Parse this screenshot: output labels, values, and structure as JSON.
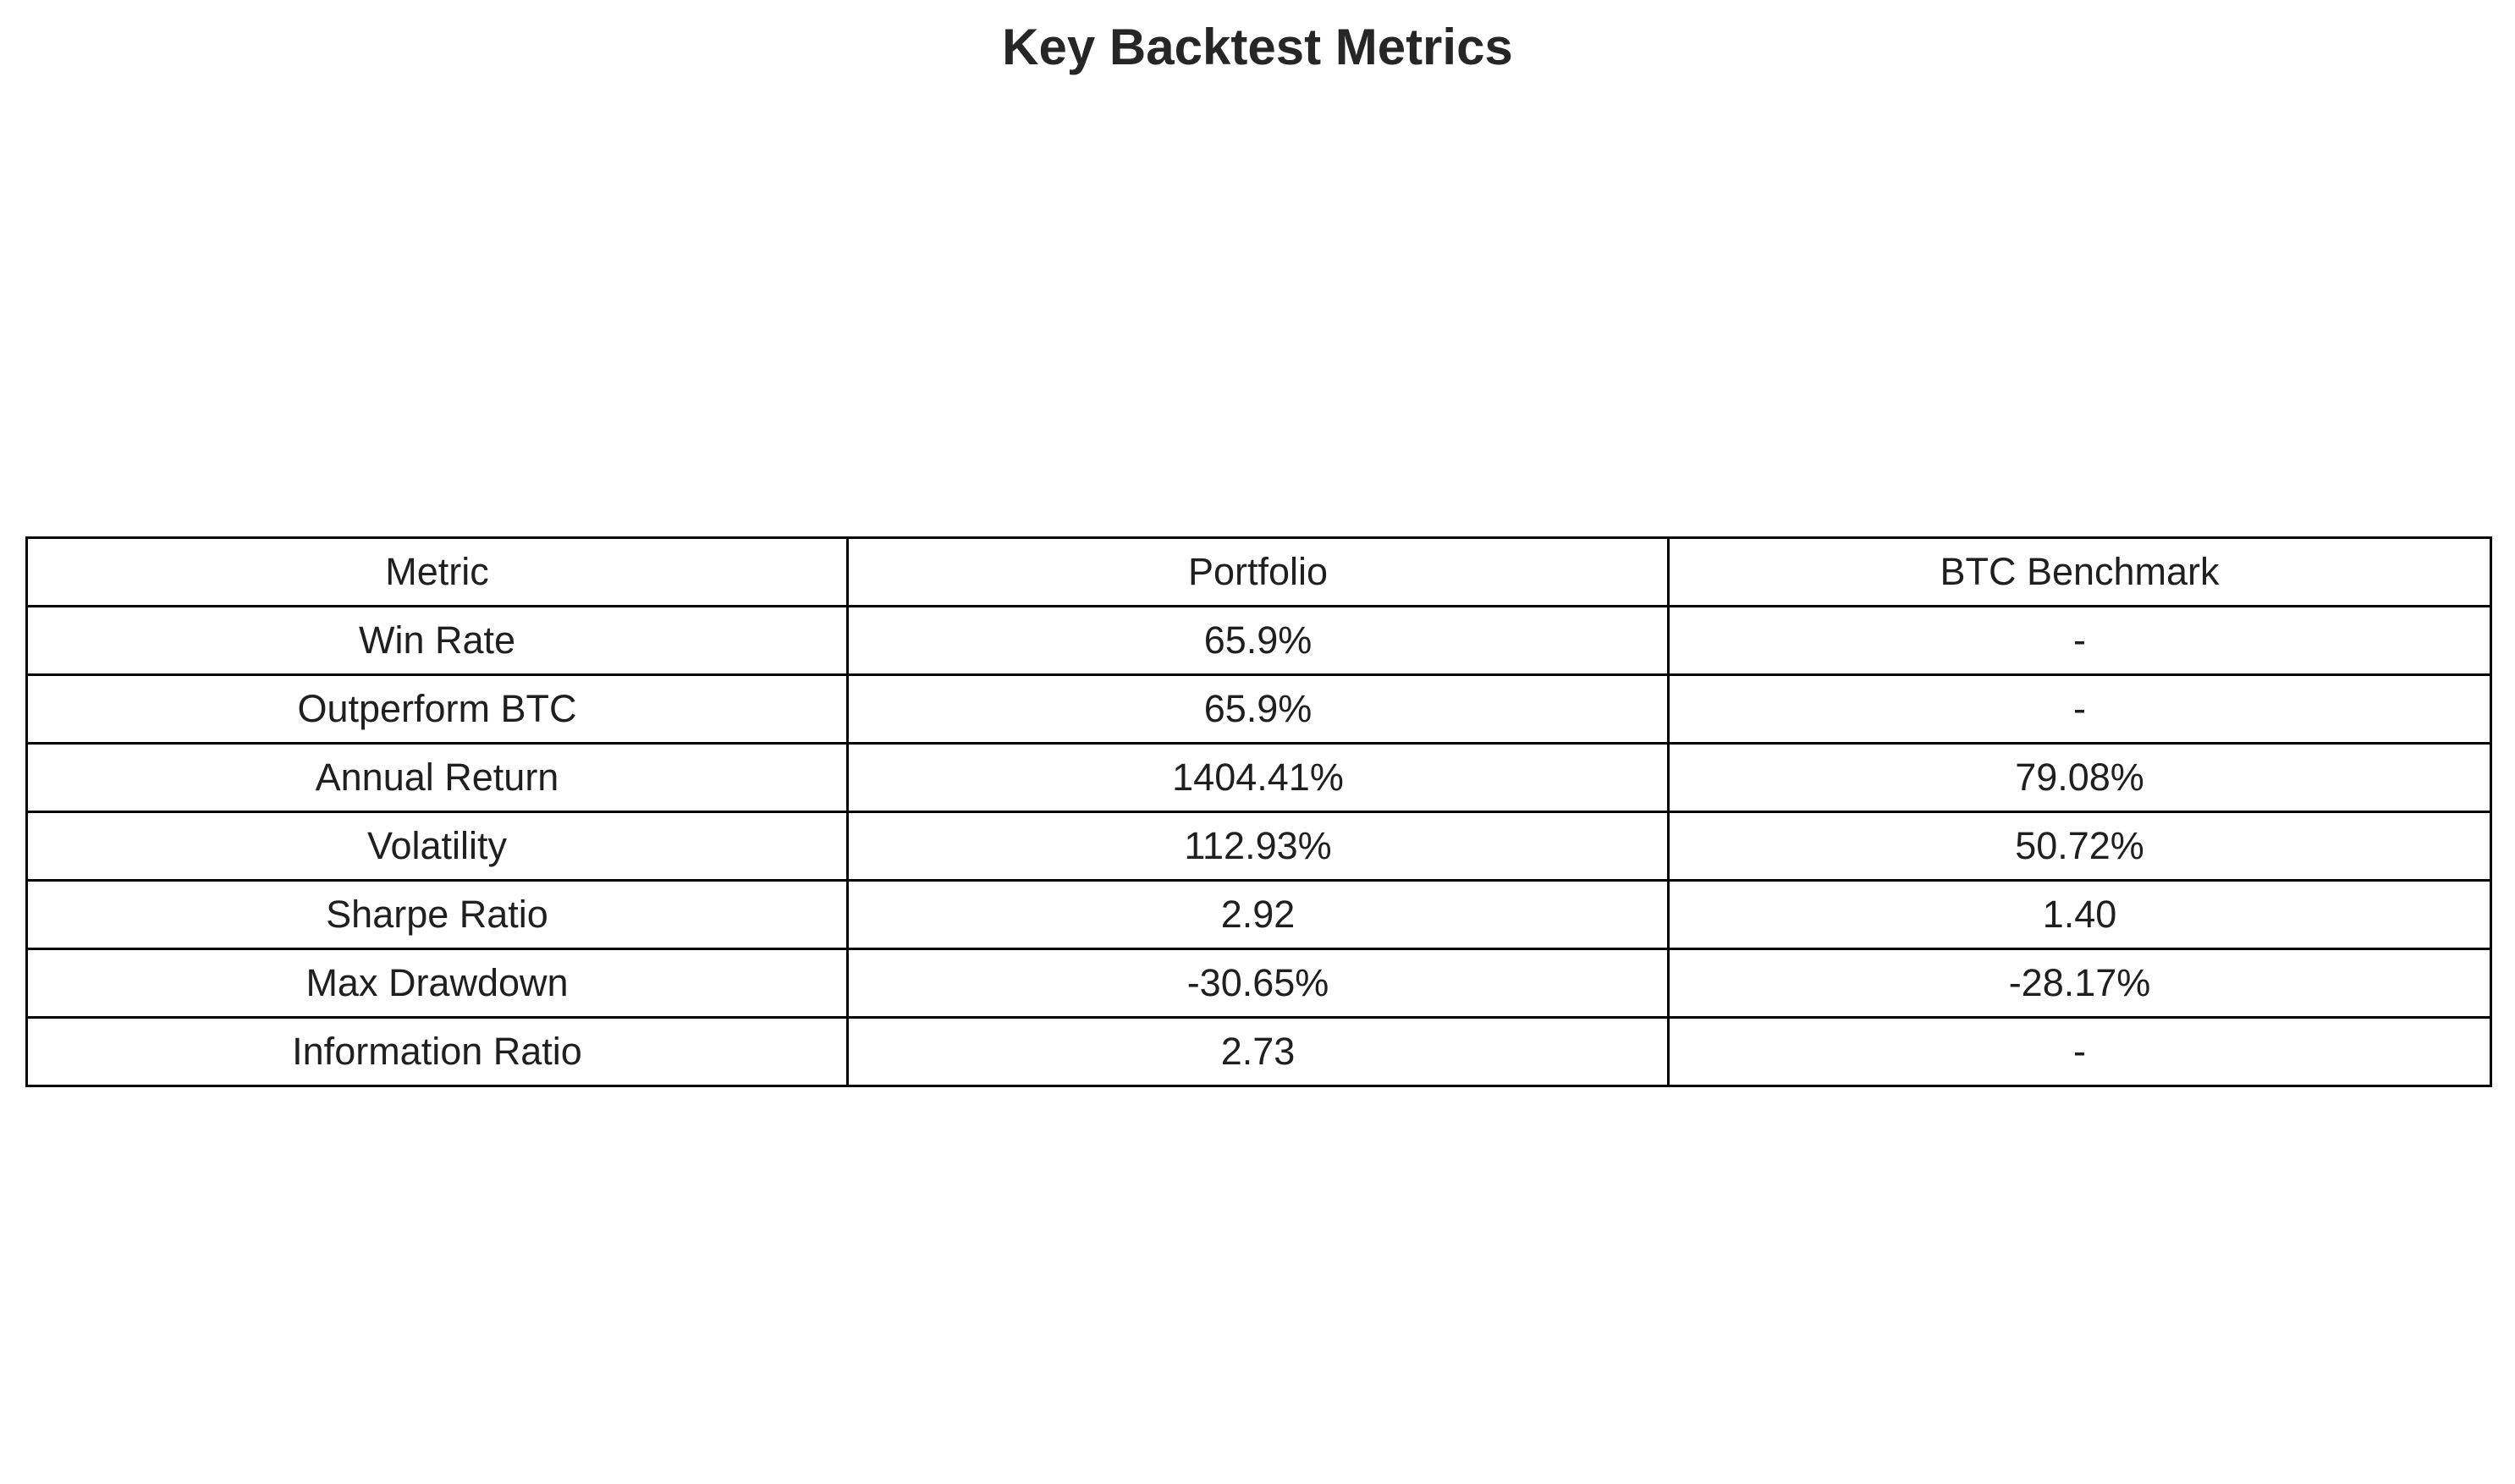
{
  "chart_data": {
    "type": "table",
    "title": "Key Backtest Metrics",
    "columns": [
      "Metric",
      "Portfolio",
      "BTC Benchmark"
    ],
    "rows": [
      [
        "Win Rate",
        "65.9%",
        "-"
      ],
      [
        "Outperform BTC",
        "65.9%",
        "-"
      ],
      [
        "Annual Return",
        "1404.41%",
        "79.08%"
      ],
      [
        "Volatility",
        "112.93%",
        "50.72%"
      ],
      [
        "Sharpe Ratio",
        "2.92",
        "1.40"
      ],
      [
        "Max Drawdown",
        "-30.65%",
        "-28.17%"
      ],
      [
        "Information Ratio",
        "2.73",
        "-"
      ]
    ]
  }
}
